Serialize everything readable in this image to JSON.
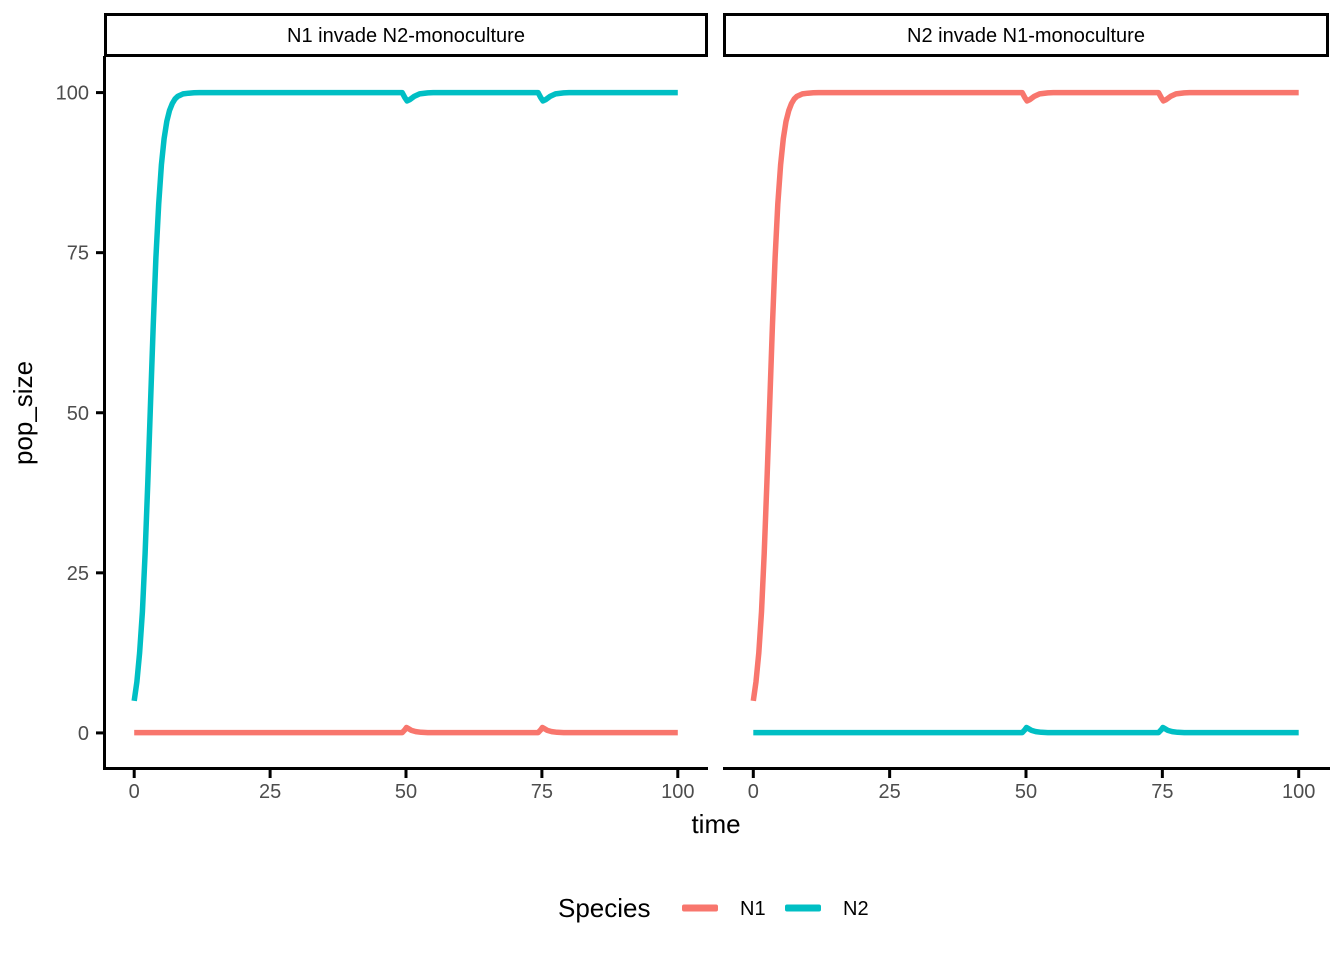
{
  "figure": {
    "background": "#FFFFFF",
    "axis_text_color": "#4D4D4D",
    "axis_line_color": "#000000"
  },
  "chart_data": {
    "type": "line",
    "xlabel": "time",
    "ylabel": "pop_size",
    "xlim": [
      0,
      100
    ],
    "ylim": [
      0,
      100
    ],
    "x_ticks": [
      0,
      25,
      50,
      75,
      100
    ],
    "y_ticks": [
      0,
      25,
      50,
      75,
      100
    ],
    "grid": false,
    "legend": {
      "title": "Species",
      "position": "bottom",
      "entries": [
        {
          "label": "N1",
          "color": "#F8766D"
        },
        {
          "label": "N2",
          "color": "#00BFC4"
        }
      ]
    },
    "series_colors": {
      "N1": "#F8766D",
      "N2": "#00BFC4"
    },
    "facets": [
      {
        "title": "N1 invade N2-monoculture",
        "series": [
          {
            "name": "N1",
            "points": [
              [
                0,
                0.05
              ],
              [
                49.3,
                0.05
              ],
              [
                49.8,
                0.5
              ],
              [
                50.1,
                0.85
              ],
              [
                50.5,
                0.65
              ],
              [
                51,
                0.4
              ],
              [
                51.8,
                0.2
              ],
              [
                52.8,
                0.1
              ],
              [
                54,
                0.05
              ],
              [
                74.3,
                0.05
              ],
              [
                74.8,
                0.5
              ],
              [
                75.1,
                0.85
              ],
              [
                75.5,
                0.65
              ],
              [
                76,
                0.4
              ],
              [
                76.8,
                0.2
              ],
              [
                77.8,
                0.1
              ],
              [
                79,
                0.05
              ],
              [
                100,
                0.05
              ]
            ]
          },
          {
            "name": "N2",
            "points": [
              [
                0,
                5
              ],
              [
                0.5,
                8
              ],
              [
                1,
                12.5
              ],
              [
                1.5,
                18.9
              ],
              [
                2,
                28
              ],
              [
                2.5,
                39.1
              ],
              [
                3,
                51.4
              ],
              [
                3.5,
                63.5
              ],
              [
                4,
                74.2
              ],
              [
                4.5,
                82.6
              ],
              [
                5,
                88.7
              ],
              [
                5.5,
                92.8
              ],
              [
                6,
                95.5
              ],
              [
                6.5,
                97.2
              ],
              [
                7,
                98.3
              ],
              [
                7.5,
                99
              ],
              [
                8,
                99.4
              ],
              [
                8.5,
                99.6
              ],
              [
                9,
                99.8
              ],
              [
                10,
                99.9
              ],
              [
                11,
                99.97
              ],
              [
                12,
                100
              ],
              [
                49.3,
                100
              ],
              [
                49.8,
                99.2
              ],
              [
                50.2,
                98.7
              ],
              [
                50.7,
                98.9
              ],
              [
                51.5,
                99.4
              ],
              [
                52.5,
                99.8
              ],
              [
                54,
                99.95
              ],
              [
                55,
                100
              ],
              [
                74.3,
                100
              ],
              [
                74.8,
                99.2
              ],
              [
                75.2,
                98.7
              ],
              [
                75.7,
                98.9
              ],
              [
                76.5,
                99.4
              ],
              [
                77.5,
                99.8
              ],
              [
                79,
                99.95
              ],
              [
                80,
                100
              ],
              [
                100,
                100
              ]
            ]
          }
        ]
      },
      {
        "title": "N2 invade N1-monoculture",
        "series": [
          {
            "name": "N1",
            "points": [
              [
                0,
                5
              ],
              [
                0.5,
                8
              ],
              [
                1,
                12.5
              ],
              [
                1.5,
                18.9
              ],
              [
                2,
                28
              ],
              [
                2.5,
                39.1
              ],
              [
                3,
                51.4
              ],
              [
                3.5,
                63.5
              ],
              [
                4,
                74.2
              ],
              [
                4.5,
                82.6
              ],
              [
                5,
                88.7
              ],
              [
                5.5,
                92.8
              ],
              [
                6,
                95.5
              ],
              [
                6.5,
                97.2
              ],
              [
                7,
                98.3
              ],
              [
                7.5,
                99
              ],
              [
                8,
                99.4
              ],
              [
                8.5,
                99.6
              ],
              [
                9,
                99.8
              ],
              [
                10,
                99.9
              ],
              [
                11,
                99.97
              ],
              [
                12,
                100
              ],
              [
                49.3,
                100
              ],
              [
                49.8,
                99.2
              ],
              [
                50.2,
                98.7
              ],
              [
                50.7,
                98.9
              ],
              [
                51.5,
                99.4
              ],
              [
                52.5,
                99.8
              ],
              [
                54,
                99.95
              ],
              [
                55,
                100
              ],
              [
                74.3,
                100
              ],
              [
                74.8,
                99.2
              ],
              [
                75.2,
                98.7
              ],
              [
                75.7,
                98.9
              ],
              [
                76.5,
                99.4
              ],
              [
                77.5,
                99.8
              ],
              [
                79,
                99.95
              ],
              [
                80,
                100
              ],
              [
                100,
                100
              ]
            ]
          },
          {
            "name": "N2",
            "points": [
              [
                0,
                0.05
              ],
              [
                49.3,
                0.05
              ],
              [
                49.8,
                0.5
              ],
              [
                50.1,
                0.85
              ],
              [
                50.5,
                0.65
              ],
              [
                51,
                0.4
              ],
              [
                51.8,
                0.2
              ],
              [
                52.8,
                0.1
              ],
              [
                54,
                0.05
              ],
              [
                74.3,
                0.05
              ],
              [
                74.8,
                0.5
              ],
              [
                75.1,
                0.85
              ],
              [
                75.5,
                0.65
              ],
              [
                76,
                0.4
              ],
              [
                76.8,
                0.2
              ],
              [
                77.8,
                0.1
              ],
              [
                79,
                0.05
              ],
              [
                100,
                0.05
              ]
            ]
          }
        ]
      }
    ]
  }
}
